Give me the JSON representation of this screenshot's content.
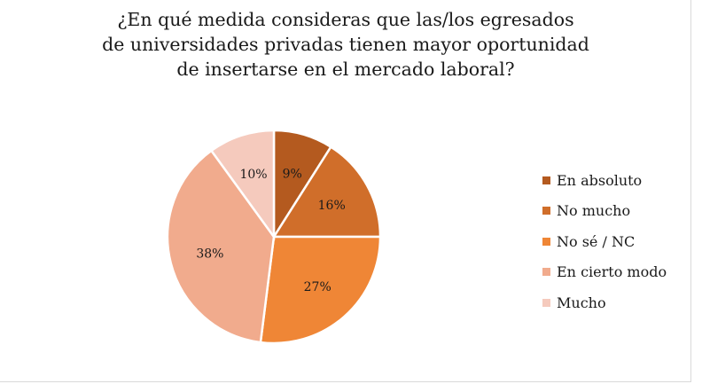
{
  "chart_data": {
    "type": "pie",
    "title_lines": [
      "¿En qué medida consideras que las/los egresados",
      "de universidades privadas tienen mayor oportunidad",
      "de insertarse en el mercado laboral?"
    ],
    "legend_position": "right",
    "slices": [
      {
        "label": "En absoluto",
        "value": 9,
        "display": "9%",
        "color": "#b45a1f"
      },
      {
        "label": "No mucho",
        "value": 16,
        "display": "16%",
        "color": "#d06e2a"
      },
      {
        "label": "No sé / NC",
        "value": 27,
        "display": "27%",
        "color": "#ef8636"
      },
      {
        "label": "En cierto modo",
        "value": 38,
        "display": "38%",
        "color": "#f1ab8d"
      },
      {
        "label": "Mucho",
        "value": 10,
        "display": "10%",
        "color": "#f5cabd"
      }
    ]
  }
}
